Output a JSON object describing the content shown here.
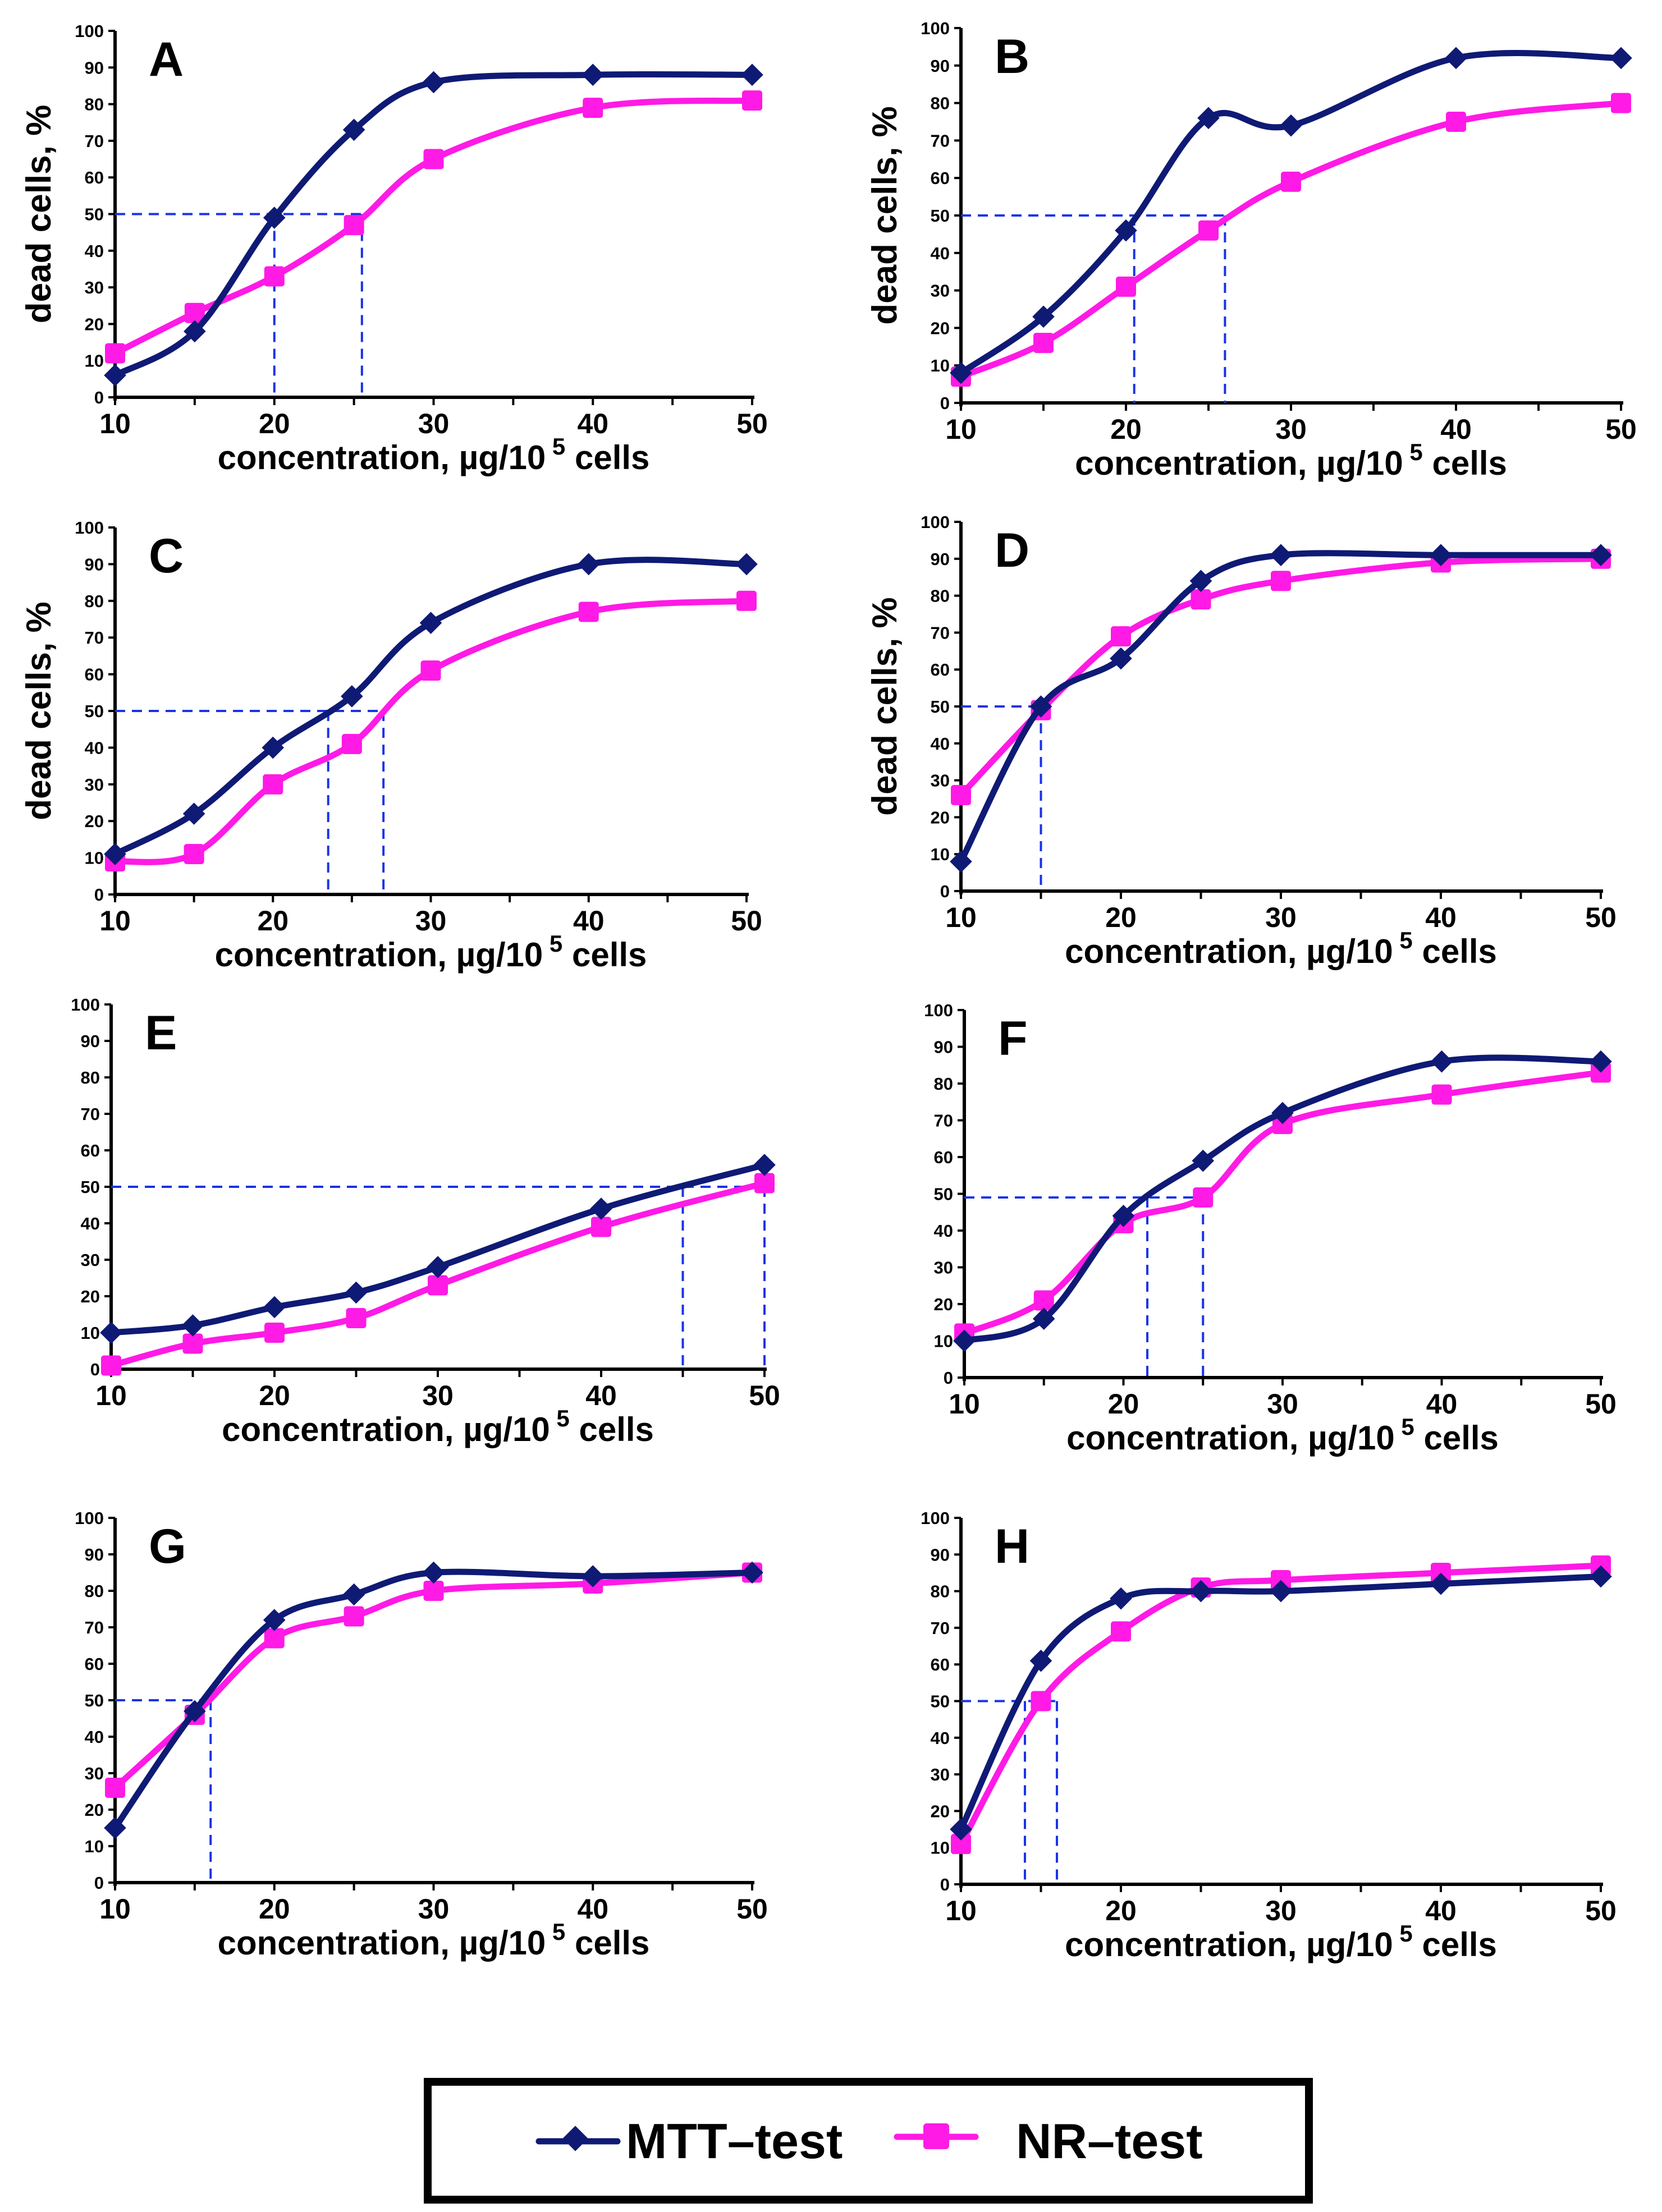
{
  "colors": {
    "mtt": "#0f1a75",
    "nr": "#ff1ae6",
    "reference": "#1a33e6"
  },
  "legend": {
    "mtt": "MTT–test",
    "nr": "NR–test"
  },
  "x_label_text": "concentration, µg/10",
  "x_label_sup": "5",
  "x_label_tail": "cells",
  "y_label": "dead cells, %",
  "y_ticks": [
    0,
    10,
    20,
    30,
    40,
    50,
    60,
    70,
    80,
    90,
    100
  ],
  "x_ticks": [
    10,
    20,
    30,
    40,
    50
  ],
  "chart_data": [
    {
      "type": "line",
      "panel": "A",
      "xlabel": "concentration, µg/10^5 cells",
      "ylabel": "dead cells, %",
      "xlim": [
        10,
        50
      ],
      "ylim": [
        0,
        100
      ],
      "x": [
        10,
        15,
        20,
        25,
        30,
        40,
        50
      ],
      "series": [
        {
          "name": "MTT–test",
          "values": [
            6,
            18,
            49,
            73,
            86,
            88,
            88
          ]
        },
        {
          "name": "NR–test",
          "values": [
            12,
            23,
            33,
            47,
            65,
            79,
            81
          ]
        }
      ],
      "reference_x": [
        20,
        25.5
      ],
      "reference_y": 50
    },
    {
      "type": "line",
      "panel": "B",
      "xlabel": "concentration, µg/10^5 cells",
      "ylabel": "dead cells, %",
      "xlim": [
        10,
        50
      ],
      "ylim": [
        0,
        100
      ],
      "x": [
        10,
        15,
        20,
        25,
        30,
        40,
        50
      ],
      "series": [
        {
          "name": "MTT–test",
          "values": [
            8,
            23,
            46,
            76,
            74,
            92,
            92
          ]
        },
        {
          "name": "NR–test",
          "values": [
            7,
            16,
            31,
            46,
            59,
            75,
            80
          ]
        }
      ],
      "reference_x": [
        20.5,
        26
      ],
      "reference_y": 50
    },
    {
      "type": "line",
      "panel": "C",
      "xlabel": "concentration, µg/10^5 cells",
      "ylabel": "dead cells, %",
      "xlim": [
        10,
        50
      ],
      "ylim": [
        0,
        100
      ],
      "x": [
        10,
        15,
        20,
        25,
        30,
        40,
        50
      ],
      "series": [
        {
          "name": "MTT–test",
          "values": [
            11,
            22,
            40,
            54,
            74,
            90,
            90
          ]
        },
        {
          "name": "NR–test",
          "values": [
            9,
            11,
            30,
            41,
            61,
            77,
            80
          ]
        }
      ],
      "reference_x": [
        23.5,
        27
      ],
      "reference_y": 50
    },
    {
      "type": "line",
      "panel": "D",
      "xlabel": "concentration, µg/10^5 cells",
      "ylabel": "dead cells, %",
      "xlim": [
        10,
        50
      ],
      "ylim": [
        0,
        100
      ],
      "x": [
        10,
        15,
        20,
        25,
        30,
        40,
        50
      ],
      "series": [
        {
          "name": "MTT–test",
          "values": [
            8,
            50,
            63,
            84,
            91,
            91,
            91
          ]
        },
        {
          "name": "NR–test",
          "values": [
            26,
            49,
            69,
            79,
            84,
            89,
            90
          ]
        }
      ],
      "reference_x": [
        15
      ],
      "reference_y": 50
    },
    {
      "type": "line",
      "panel": "E",
      "xlabel": "concentration, µg/10^5 cells",
      "ylabel": "",
      "xlim": [
        10,
        50
      ],
      "ylim": [
        0,
        100
      ],
      "x": [
        10,
        15,
        20,
        25,
        30,
        40,
        50
      ],
      "series": [
        {
          "name": "MTT–test",
          "values": [
            10,
            12,
            17,
            21,
            28,
            44,
            56
          ]
        },
        {
          "name": "NR–test",
          "values": [
            1,
            7,
            10,
            14,
            23,
            39,
            51
          ]
        }
      ],
      "reference_x": [
        45,
        50
      ],
      "reference_y": 50
    },
    {
      "type": "line",
      "panel": "F",
      "xlabel": "concentration, µg/10^5 cells",
      "ylabel": "",
      "xlim": [
        10,
        50
      ],
      "ylim": [
        0,
        100
      ],
      "x": [
        10,
        15,
        20,
        25,
        30,
        40,
        50
      ],
      "series": [
        {
          "name": "MTT–test",
          "values": [
            10,
            16,
            44,
            59,
            72,
            86,
            86
          ]
        },
        {
          "name": "NR–test",
          "values": [
            12,
            21,
            42,
            49,
            69,
            77,
            83
          ]
        }
      ],
      "reference_x": [
        21.5,
        25
      ],
      "reference_y": 49
    },
    {
      "type": "line",
      "panel": "G",
      "xlabel": "concentration, µg/10^5 cells",
      "ylabel": "",
      "xlim": [
        10,
        50
      ],
      "ylim": [
        0,
        100
      ],
      "x": [
        10,
        15,
        20,
        25,
        30,
        40,
        50
      ],
      "series": [
        {
          "name": "MTT–test",
          "values": [
            15,
            47,
            72,
            79,
            85,
            84,
            85
          ]
        },
        {
          "name": "NR–test",
          "values": [
            26,
            46,
            67,
            73,
            80,
            82,
            85
          ]
        }
      ],
      "reference_x": [
        16
      ],
      "reference_y": 50
    },
    {
      "type": "line",
      "panel": "H",
      "xlabel": "concentration, µg/10^5 cells",
      "ylabel": "",
      "xlim": [
        10,
        50
      ],
      "ylim": [
        0,
        100
      ],
      "x": [
        10,
        15,
        20,
        25,
        30,
        40,
        50
      ],
      "series": [
        {
          "name": "MTT–test",
          "values": [
            15,
            61,
            78,
            80,
            80,
            82,
            84
          ]
        },
        {
          "name": "NR–test",
          "values": [
            11,
            50,
            69,
            81,
            83,
            85,
            87
          ]
        }
      ],
      "reference_x": [
        14,
        16
      ],
      "reference_y": 50
    }
  ]
}
